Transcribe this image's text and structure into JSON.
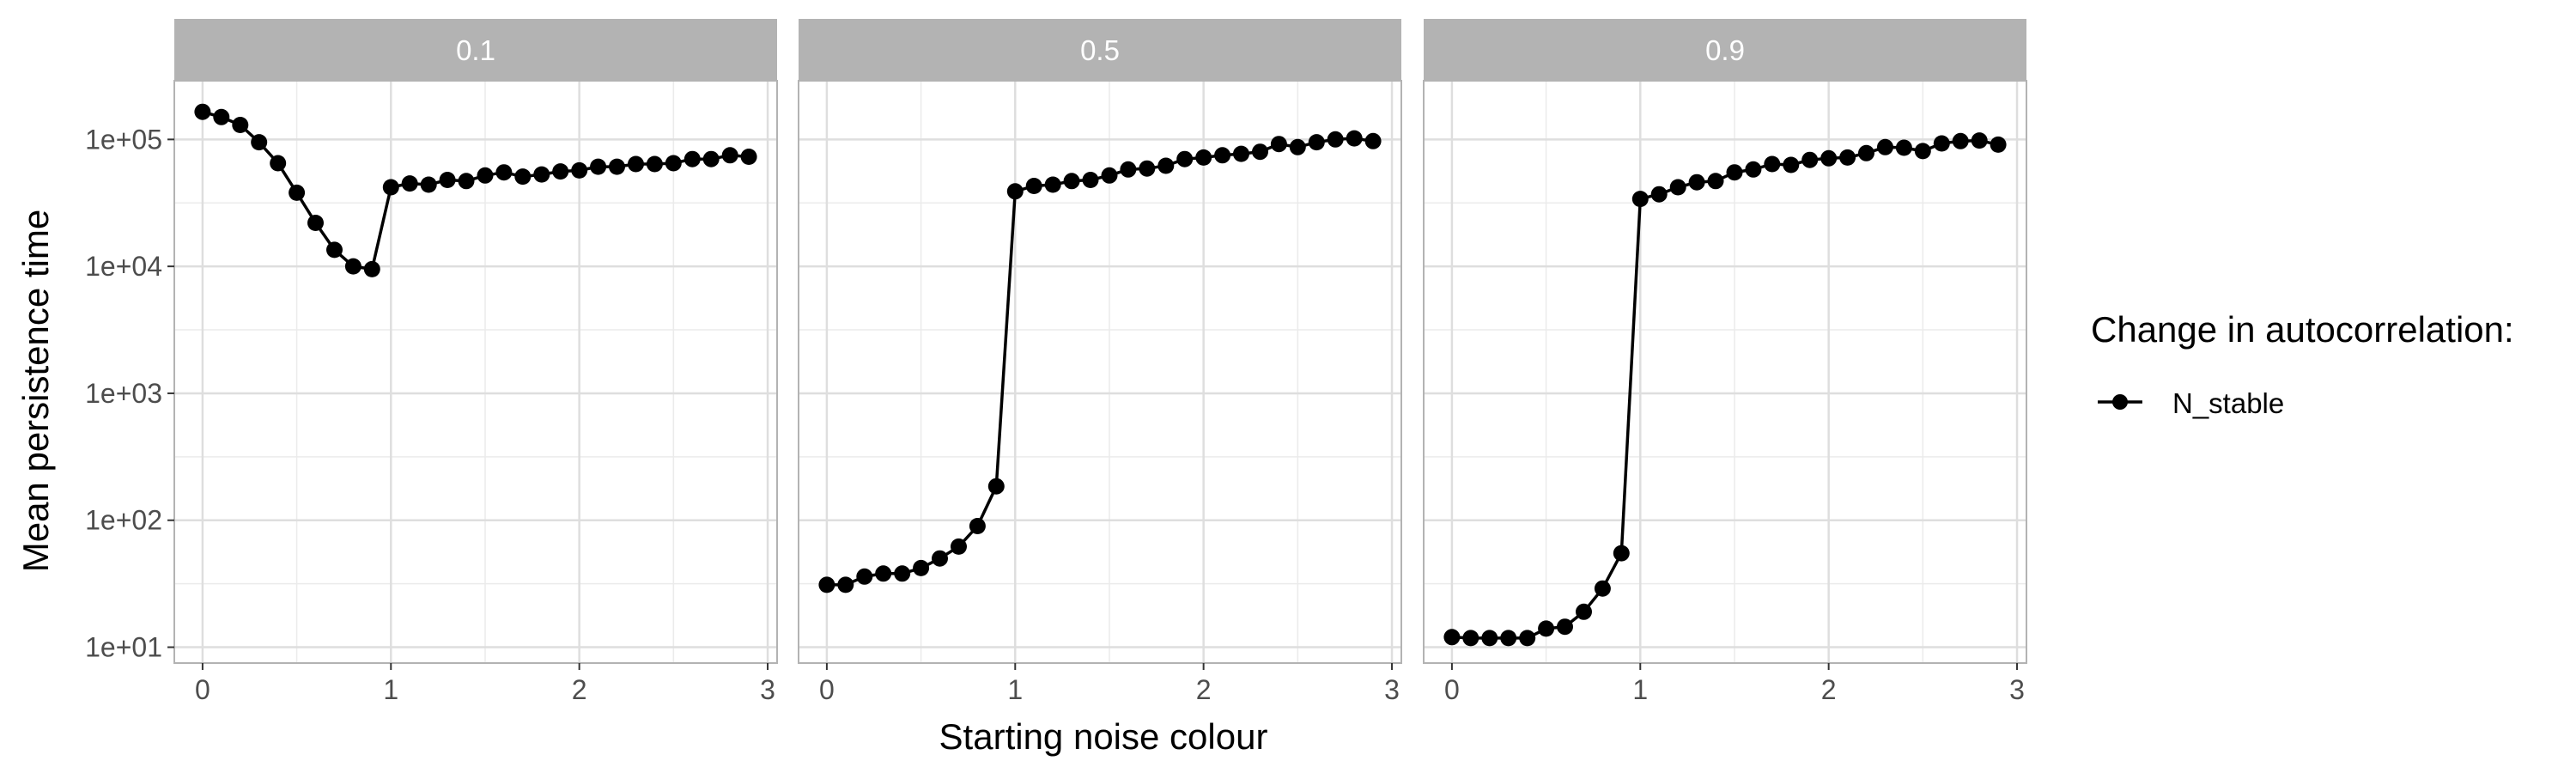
{
  "chart_data": {
    "type": "line",
    "xlabel": "Starting noise colour",
    "ylabel": "Mean persistence time",
    "y_scale": "log10",
    "ylim": [
      7.5,
      290000
    ],
    "y_ticks": [
      10,
      100,
      1000,
      10000,
      100000
    ],
    "y_tick_labels": [
      "1e+01",
      "1e+02",
      "1e+03",
      "1e+04",
      "1e+05"
    ],
    "xlim": [
      -0.15,
      3.05
    ],
    "x_ticks": [
      0,
      1,
      2,
      3
    ],
    "x_tick_labels": [
      "0",
      "1",
      "2",
      "3"
    ],
    "grid": true,
    "legend": {
      "title": "Change in autocorrelation:",
      "position": "right",
      "entries": [
        "N_stable"
      ]
    },
    "x": [
      0,
      0.1,
      0.2,
      0.3,
      0.4,
      0.5,
      0.6,
      0.7,
      0.8,
      0.9,
      1.0,
      1.1,
      1.2,
      1.3,
      1.4,
      1.5,
      1.6,
      1.7,
      1.8,
      1.9,
      2.0,
      2.1,
      2.2,
      2.3,
      2.4,
      2.5,
      2.6,
      2.7,
      2.8,
      2.9
    ],
    "panels": [
      {
        "label": "0.1",
        "series": [
          {
            "name": "N_stable",
            "values": [
              165000,
              150000,
              130000,
              95000,
              65000,
              38000,
              22000,
              13500,
              10000,
              9500,
              42000,
              45000,
              44000,
              48000,
              47000,
              52000,
              55000,
              51000,
              53000,
              56000,
              57000,
              61000,
              61000,
              64000,
              64000,
              65000,
              70000,
              70000,
              75000,
              73000
            ]
          }
        ]
      },
      {
        "label": "0.5",
        "series": [
          {
            "name": "N_stable",
            "values": [
              31,
              31,
              36,
              38,
              38,
              42,
              50,
              62,
              90,
              185,
              39000,
              43000,
              44000,
              47000,
              48000,
              52000,
              58000,
              59000,
              62000,
              70000,
              72000,
              75000,
              77000,
              80000,
              92000,
              87000,
              95000,
              100000,
              102000,
              97000
            ]
          }
        ]
      },
      {
        "label": "0.9",
        "series": [
          {
            "name": "N_stable",
            "values": [
              12,
              11.8,
              11.8,
              11.8,
              11.8,
              14,
              14.5,
              19,
              29,
              55,
              34000,
              37000,
              42000,
              46000,
              47000,
              55000,
              58000,
              64000,
              63000,
              69000,
              71000,
              72000,
              78000,
              87000,
              86000,
              81000,
              93000,
              97000,
              98000,
              91000
            ]
          }
        ]
      }
    ]
  }
}
